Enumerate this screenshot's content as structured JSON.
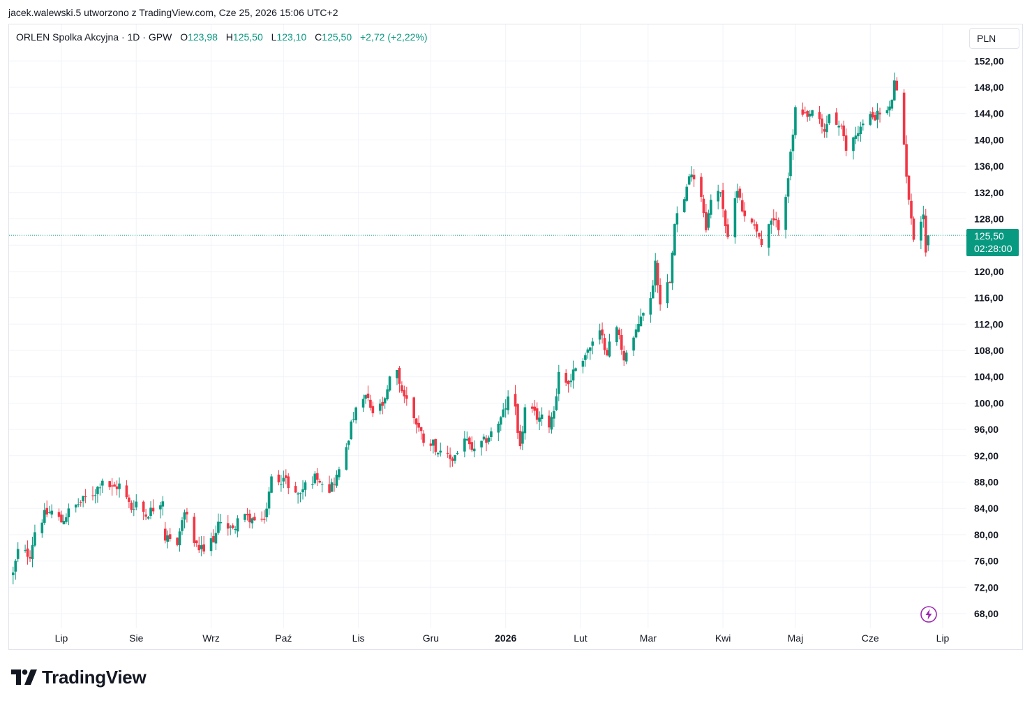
{
  "caption": "jacek.walewski.5 utworzono z TradingView.com, Cze 25, 2026 15:06 UTC+2",
  "legend": {
    "symbol": "ORLEN Spolka Akcyjna · 1D · GPW",
    "open_label": "O",
    "open": "123,98",
    "high_label": "H",
    "high": "125,50",
    "low_label": "L",
    "low": "123,10",
    "close_label": "C",
    "close": "125,50",
    "change": "+2,72 (+2,22%)"
  },
  "currency": "PLN",
  "last_price": {
    "price": "125,50",
    "countdown": "02:28:00"
  },
  "brand": "TradingView",
  "colors": {
    "up": "#089981",
    "down": "#f23645",
    "grid": "#f0f3fa",
    "text": "#131722",
    "bolt": "#9c27b0"
  },
  "icons": {
    "logo": "tradingview-logo-icon",
    "bolt": "lightning-bolt-icon"
  },
  "chart_data": {
    "type": "candlestick",
    "title": "ORLEN Spolka Akcyjna · 1D · GPW",
    "ylim": [
      66,
      155
    ],
    "y_ticks": [
      "152,00",
      "148,00",
      "144,00",
      "140,00",
      "136,00",
      "132,00",
      "128,00",
      "124,00",
      "120,00",
      "116,00",
      "112,00",
      "108,00",
      "104,00",
      "100,00",
      "96,00",
      "92,00",
      "88,00",
      "84,00",
      "80,00",
      "76,00",
      "72,00",
      "68,00"
    ],
    "x_ticks": [
      {
        "label": "Lip",
        "date": "2025-07-01",
        "bold": false
      },
      {
        "label": "Sie",
        "date": "2025-08-01",
        "bold": false
      },
      {
        "label": "Wrz",
        "date": "2025-09-01",
        "bold": false
      },
      {
        "label": "Paź",
        "date": "2025-10-01",
        "bold": false
      },
      {
        "label": "Lis",
        "date": "2025-11-01",
        "bold": false
      },
      {
        "label": "Gru",
        "date": "2025-12-01",
        "bold": false
      },
      {
        "label": "2026",
        "date": "2026-01-01",
        "bold": true
      },
      {
        "label": "Lut",
        "date": "2026-02-01",
        "bold": false
      },
      {
        "label": "Mar",
        "date": "2026-03-01",
        "bold": false
      },
      {
        "label": "Kwi",
        "date": "2026-04-01",
        "bold": false
      },
      {
        "label": "Maj",
        "date": "2026-05-01",
        "bold": false
      },
      {
        "label": "Cze",
        "date": "2026-06-01",
        "bold": false
      },
      {
        "label": "Lip",
        "date": "2026-07-01",
        "bold": false
      }
    ],
    "x_range": [
      "2025-06-11",
      "2026-07-22"
    ],
    "last_close": 125.5,
    "path": [
      [
        "2025-06-11",
        74.0
      ],
      [
        "2025-06-13",
        77.5
      ],
      [
        "2025-06-18",
        77.0
      ],
      [
        "2025-06-20",
        80.5
      ],
      [
        "2025-06-24",
        83.0
      ],
      [
        "2025-06-27",
        83.5
      ],
      [
        "2025-07-01",
        82.0
      ],
      [
        "2025-07-04",
        83.5
      ],
      [
        "2025-07-09",
        85.0
      ],
      [
        "2025-07-15",
        86.5
      ],
      [
        "2025-07-18",
        88.5
      ],
      [
        "2025-07-22",
        87.0
      ],
      [
        "2025-07-25",
        87.5
      ],
      [
        "2025-07-30",
        84.0
      ],
      [
        "2025-08-01",
        85.0
      ],
      [
        "2025-08-05",
        83.0
      ],
      [
        "2025-08-08",
        84.0
      ],
      [
        "2025-08-12",
        85.5
      ],
      [
        "2025-08-13",
        79.5
      ],
      [
        "2025-08-18",
        79.0
      ],
      [
        "2025-08-21",
        83.5
      ],
      [
        "2025-08-26",
        78.0
      ],
      [
        "2025-08-29",
        77.5
      ],
      [
        "2025-09-03",
        80.0
      ],
      [
        "2025-09-05",
        82.5
      ],
      [
        "2025-09-10",
        80.5
      ],
      [
        "2025-09-12",
        82.5
      ],
      [
        "2025-09-17",
        82.5
      ],
      [
        "2025-09-22",
        81.5
      ],
      [
        "2025-09-24",
        84.0
      ],
      [
        "2025-09-26",
        88.5
      ],
      [
        "2025-10-01",
        88.5
      ],
      [
        "2025-10-07",
        86.0
      ],
      [
        "2025-10-10",
        87.5
      ],
      [
        "2025-10-15",
        89.0
      ],
      [
        "2025-10-20",
        87.0
      ],
      [
        "2025-10-24",
        89.5
      ],
      [
        "2025-10-27",
        93.5
      ],
      [
        "2025-10-30",
        98.0
      ],
      [
        "2025-11-04",
        101.0
      ],
      [
        "2025-11-07",
        98.5
      ],
      [
        "2025-11-12",
        100.0
      ],
      [
        "2025-11-14",
        103.5
      ],
      [
        "2025-11-17",
        104.5
      ],
      [
        "2025-11-19",
        102.0
      ],
      [
        "2025-11-24",
        98.0
      ],
      [
        "2025-11-28",
        94.5
      ],
      [
        "2025-12-02",
        94.0
      ],
      [
        "2025-12-05",
        92.0
      ],
      [
        "2025-12-10",
        91.5
      ],
      [
        "2025-12-15",
        94.5
      ],
      [
        "2025-12-19",
        92.5
      ],
      [
        "2025-12-24",
        94.5
      ],
      [
        "2025-12-30",
        97.5
      ],
      [
        "2026-01-02",
        100.5
      ],
      [
        "2026-01-05",
        99.5
      ],
      [
        "2026-01-07",
        93.0
      ],
      [
        "2026-01-09",
        99.0
      ],
      [
        "2026-01-14",
        98.0
      ],
      [
        "2026-01-19",
        97.0
      ],
      [
        "2026-01-21",
        99.0
      ],
      [
        "2026-01-23",
        104.5
      ],
      [
        "2026-01-27",
        103.0
      ],
      [
        "2026-01-30",
        105.5
      ],
      [
        "2026-02-04",
        108.0
      ],
      [
        "2026-02-09",
        110.5
      ],
      [
        "2026-02-12",
        108.0
      ],
      [
        "2026-02-16",
        111.5
      ],
      [
        "2026-02-19",
        107.0
      ],
      [
        "2026-02-24",
        110.5
      ],
      [
        "2026-02-26",
        113.5
      ],
      [
        "2026-03-02",
        115.5
      ],
      [
        "2026-03-04",
        121.5
      ],
      [
        "2026-03-06",
        115.5
      ],
      [
        "2026-03-10",
        119.0
      ],
      [
        "2026-03-12",
        128.0
      ],
      [
        "2026-03-16",
        131.0
      ],
      [
        "2026-03-19",
        135.5
      ],
      [
        "2026-03-23",
        131.5
      ],
      [
        "2026-03-25",
        127.0
      ],
      [
        "2026-03-27",
        130.5
      ],
      [
        "2026-03-31",
        132.5
      ],
      [
        "2026-04-03",
        124.5
      ],
      [
        "2026-04-07",
        133.0
      ],
      [
        "2026-04-10",
        128.0
      ],
      [
        "2026-04-14",
        127.5
      ],
      [
        "2026-04-17",
        124.0
      ],
      [
        "2026-04-21",
        127.5
      ],
      [
        "2026-04-24",
        127.0
      ],
      [
        "2026-04-27",
        132.0
      ],
      [
        "2026-04-29",
        137.5
      ],
      [
        "2026-05-01",
        144.5
      ],
      [
        "2026-05-06",
        143.0
      ],
      [
        "2026-05-08",
        144.5
      ],
      [
        "2026-05-13",
        141.0
      ],
      [
        "2026-05-15",
        144.0
      ],
      [
        "2026-05-20",
        141.5
      ],
      [
        "2026-05-22",
        138.5
      ],
      [
        "2026-05-27",
        141.5
      ],
      [
        "2026-06-01",
        143.5
      ],
      [
        "2026-06-05",
        144.0
      ],
      [
        "2026-06-09",
        144.5
      ],
      [
        "2026-06-11",
        148.5
      ],
      [
        "2026-06-14",
        143.5
      ],
      [
        "2026-06-16",
        135.0
      ],
      [
        "2026-06-18",
        127.5
      ],
      [
        "2026-06-20",
        123.5
      ],
      [
        "2026-06-22",
        128.0
      ],
      [
        "2026-06-23",
        129.0
      ],
      [
        "2026-06-24",
        123.0
      ],
      [
        "2026-06-25",
        125.5
      ]
    ]
  }
}
